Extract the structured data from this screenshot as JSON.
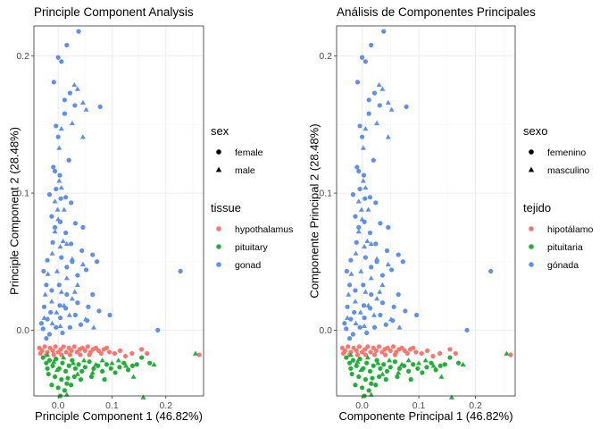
{
  "colors": {
    "hypothalamus": "#F8766D",
    "pituitary": "#1FB136",
    "gonad": "#5B8FF0",
    "legend_key": "#000000"
  },
  "chart_data": [
    {
      "type": "scatter",
      "title": "Principle Component Analysis",
      "xlabel": "Principle Component 1 (46.82%)",
      "ylabel": "Principle Component 2 (28.48%)",
      "xlim": [
        -0.045,
        0.27
      ],
      "ylim": [
        -0.048,
        0.222
      ],
      "x_ticks": [
        {
          "value": 0.0,
          "label": "0.0"
        },
        {
          "value": 0.1,
          "label": "0.1"
        },
        {
          "value": 0.2,
          "label": "0.2"
        }
      ],
      "y_ticks": [
        {
          "value": 0.0,
          "label": "0.0"
        },
        {
          "value": 0.1,
          "label": "0.1"
        },
        {
          "value": 0.2,
          "label": "0.2"
        }
      ],
      "grid": true,
      "legend_position": "right",
      "legend": {
        "shape_title": "sex",
        "shape_items": [
          {
            "key": "female",
            "label": "female",
            "shape": "circle"
          },
          {
            "key": "male",
            "label": "male",
            "shape": "triangle"
          }
        ],
        "color_title": "tissue",
        "color_items": [
          {
            "key": "hypothalamus",
            "label": "hypothalamus"
          },
          {
            "key": "pituitary",
            "label": "pituitary"
          },
          {
            "key": "gonad",
            "label": "gonad"
          }
        ]
      }
    },
    {
      "type": "scatter",
      "title": "Análisis de Componentes Principales",
      "xlabel": "Componente Principal 1 (46.82%)",
      "ylabel": "Componente Principal 2 (28.48%)",
      "xlim": [
        -0.045,
        0.27
      ],
      "ylim": [
        -0.048,
        0.222
      ],
      "x_ticks": [
        {
          "value": 0.0,
          "label": "0.0"
        },
        {
          "value": 0.1,
          "label": "0.1"
        },
        {
          "value": 0.2,
          "label": "0.2"
        }
      ],
      "y_ticks": [
        {
          "value": 0.0,
          "label": "0.0"
        },
        {
          "value": 0.1,
          "label": "0.1"
        },
        {
          "value": 0.2,
          "label": "0.2"
        }
      ],
      "grid": true,
      "legend_position": "right",
      "legend": {
        "shape_title": "sexo",
        "shape_items": [
          {
            "key": "female",
            "label": "femenino",
            "shape": "circle"
          },
          {
            "key": "male",
            "label": "masculino",
            "shape": "triangle"
          }
        ],
        "color_title": "tejido",
        "color_items": [
          {
            "key": "hypothalamus",
            "label": "hipotálamo"
          },
          {
            "key": "pituitary",
            "label": "pituitaria"
          },
          {
            "key": "gonad",
            "label": "gónada"
          }
        ]
      }
    }
  ],
  "points": {
    "gonad_female": [
      [
        0.016,
        0.208
      ],
      [
        0.038,
        0.218
      ],
      [
        0.0,
        0.199
      ],
      [
        0.006,
        0.196
      ],
      [
        -0.008,
        0.181
      ],
      [
        0.012,
        0.168
      ],
      [
        0.022,
        0.173
      ],
      [
        0.031,
        0.164
      ],
      [
        0.012,
        0.158
      ],
      [
        0.078,
        0.163
      ],
      [
        -0.004,
        0.149
      ],
      [
        0.0,
        0.141
      ],
      [
        -0.009,
        0.119
      ],
      [
        -0.006,
        0.116
      ],
      [
        0.003,
        0.113
      ],
      [
        0.02,
        0.124
      ],
      [
        -0.016,
        0.099
      ],
      [
        -0.004,
        0.103
      ],
      [
        0.005,
        0.096
      ],
      [
        0.014,
        0.097
      ],
      [
        0.024,
        0.093
      ],
      [
        0.032,
        0.078
      ],
      [
        0.046,
        0.075
      ],
      [
        -0.012,
        0.083
      ],
      [
        -0.006,
        0.075
      ],
      [
        0.004,
        0.079
      ],
      [
        0.014,
        0.071
      ],
      [
        0.024,
        0.063
      ],
      [
        0.044,
        0.058
      ],
      [
        0.064,
        0.055
      ],
      [
        0.072,
        0.05
      ],
      [
        0.052,
        0.044
      ],
      [
        0.036,
        0.04
      ],
      [
        0.016,
        0.046
      ],
      [
        0.006,
        0.053
      ],
      [
        -0.02,
        0.051
      ],
      [
        -0.027,
        0.043
      ],
      [
        -0.022,
        0.033
      ],
      [
        -0.012,
        0.029
      ],
      [
        0.002,
        0.033
      ],
      [
        0.016,
        0.026
      ],
      [
        0.036,
        0.02
      ],
      [
        0.056,
        0.017
      ],
      [
        0.076,
        0.014
      ],
      [
        0.096,
        0.011
      ],
      [
        0.064,
        0.026
      ],
      [
        0.032,
        0.011
      ],
      [
        0.014,
        0.016
      ],
      [
        0.004,
        0.009
      ],
      [
        -0.014,
        0.013
      ],
      [
        -0.026,
        0.017
      ],
      [
        -0.031,
        0.005
      ],
      [
        -0.028,
        0.001
      ],
      [
        -0.016,
        -0.003
      ],
      [
        -0.004,
        0.002
      ],
      [
        0.008,
        -0.002
      ],
      [
        -0.02,
        0.008
      ],
      [
        0.042,
        0.004
      ],
      [
        0.227,
        0.043
      ],
      [
        0.185,
        0.0
      ],
      [
        0.022,
        0.002
      ],
      [
        0.054,
        0.007
      ],
      [
        0.003,
        0.018
      ],
      [
        -0.022,
        -0.006
      ],
      [
        0.026,
        0.05
      ],
      [
        -0.01,
        0.064
      ]
    ],
    "gonad_male": [
      [
        0.006,
        0.147
      ],
      [
        0.03,
        0.179
      ],
      [
        0.036,
        0.176
      ],
      [
        0.046,
        0.166
      ],
      [
        0.052,
        0.161
      ],
      [
        0.026,
        0.151
      ],
      [
        0.046,
        0.141
      ],
      [
        0.002,
        0.133
      ],
      [
        0.002,
        0.109
      ],
      [
        0.006,
        0.104
      ],
      [
        -0.006,
        0.094
      ],
      [
        0.011,
        0.088
      ],
      [
        0.0,
        0.081
      ],
      [
        -0.006,
        0.072
      ],
      [
        0.016,
        0.063
      ],
      [
        0.004,
        0.061
      ],
      [
        -0.011,
        0.056
      ],
      [
        0.026,
        0.052
      ],
      [
        0.046,
        0.048
      ],
      [
        -0.002,
        0.043
      ],
      [
        -0.019,
        0.041
      ],
      [
        0.016,
        0.038
      ],
      [
        0.036,
        0.033
      ],
      [
        0.006,
        0.028
      ],
      [
        -0.024,
        0.026
      ],
      [
        0.026,
        0.023
      ],
      [
        -0.012,
        0.021
      ],
      [
        0.011,
        0.018
      ],
      [
        -0.003,
        0.013
      ],
      [
        0.021,
        0.011
      ],
      [
        0.051,
        0.008
      ],
      [
        -0.026,
        0.009
      ],
      [
        -0.011,
        0.005
      ],
      [
        0.004,
        0.003
      ],
      [
        0.066,
        0.002
      ],
      [
        0.031,
        0.028
      ],
      [
        0.009,
        0.065
      ],
      [
        -0.001,
        0.088
      ]
    ],
    "hypothalamus": [
      [
        -0.035,
        -0.013
      ],
      [
        -0.03,
        -0.015
      ],
      [
        -0.025,
        -0.012
      ],
      [
        -0.02,
        -0.016
      ],
      [
        -0.015,
        -0.013
      ],
      [
        -0.01,
        -0.015
      ],
      [
        -0.005,
        -0.012
      ],
      [
        0.0,
        -0.016
      ],
      [
        0.005,
        -0.014
      ],
      [
        0.01,
        -0.012
      ],
      [
        0.015,
        -0.016
      ],
      [
        0.02,
        -0.013
      ],
      [
        0.025,
        -0.015
      ],
      [
        0.03,
        -0.012
      ],
      [
        0.035,
        -0.016
      ],
      [
        0.04,
        -0.014
      ],
      [
        0.045,
        -0.013
      ],
      [
        0.05,
        -0.015
      ],
      [
        0.055,
        -0.012
      ],
      [
        0.06,
        -0.016
      ],
      [
        0.065,
        -0.014
      ],
      [
        0.07,
        -0.013
      ],
      [
        0.075,
        -0.015
      ],
      [
        0.08,
        -0.017
      ],
      [
        0.085,
        -0.014
      ],
      [
        0.09,
        -0.013
      ],
      [
        0.095,
        -0.016
      ],
      [
        0.105,
        -0.017
      ],
      [
        0.115,
        -0.015
      ],
      [
        0.125,
        -0.019
      ],
      [
        0.137,
        -0.017
      ],
      [
        0.155,
        -0.014
      ],
      [
        0.165,
        -0.017
      ],
      [
        -0.033,
        -0.017
      ],
      [
        -0.022,
        -0.018
      ],
      [
        -0.008,
        -0.018
      ],
      [
        0.006,
        -0.018
      ],
      [
        0.022,
        -0.018
      ],
      [
        0.041,
        -0.018
      ],
      [
        0.058,
        -0.018
      ],
      [
        0.262,
        -0.018
      ]
    ],
    "pituitary_female": [
      [
        -0.028,
        -0.02
      ],
      [
        -0.022,
        -0.024
      ],
      [
        -0.016,
        -0.022
      ],
      [
        -0.01,
        -0.026
      ],
      [
        -0.004,
        -0.021
      ],
      [
        0.002,
        -0.028
      ],
      [
        0.008,
        -0.024
      ],
      [
        0.014,
        -0.03
      ],
      [
        0.02,
        -0.026
      ],
      [
        0.026,
        -0.022
      ],
      [
        0.032,
        -0.028
      ],
      [
        0.038,
        -0.025
      ],
      [
        0.044,
        -0.03
      ],
      [
        0.05,
        -0.027
      ],
      [
        0.058,
        -0.023
      ],
      [
        0.066,
        -0.028
      ],
      [
        0.074,
        -0.026
      ],
      [
        0.082,
        -0.03
      ],
      [
        0.09,
        -0.025
      ],
      [
        0.098,
        -0.028
      ],
      [
        0.106,
        -0.031
      ],
      [
        0.114,
        -0.027
      ],
      [
        0.122,
        -0.024
      ],
      [
        0.13,
        -0.029
      ],
      [
        0.138,
        -0.026
      ],
      [
        0.146,
        -0.025
      ],
      [
        0.155,
        -0.02
      ],
      [
        0.17,
        -0.024
      ],
      [
        -0.018,
        -0.032
      ],
      [
        -0.006,
        -0.034
      ],
      [
        0.006,
        -0.036
      ],
      [
        0.018,
        -0.035
      ],
      [
        -0.012,
        -0.04
      ],
      [
        0.0,
        -0.042
      ],
      [
        0.012,
        -0.044
      ],
      [
        0.004,
        -0.048
      ],
      [
        -0.02,
        -0.028
      ],
      [
        0.03,
        -0.034
      ],
      [
        0.042,
        -0.036
      ],
      [
        0.024,
        -0.04
      ],
      [
        0.062,
        -0.034
      ],
      [
        0.086,
        -0.036
      ],
      [
        0.016,
        -0.039
      ]
    ],
    "pituitary_male": [
      [
        -0.02,
        -0.018
      ],
      [
        -0.008,
        -0.023
      ],
      [
        0.01,
        -0.02
      ],
      [
        0.028,
        -0.024
      ],
      [
        0.048,
        -0.022
      ],
      [
        0.064,
        -0.031
      ],
      [
        0.082,
        -0.022
      ],
      [
        0.1,
        -0.024
      ],
      [
        0.112,
        -0.022
      ],
      [
        0.126,
        -0.026
      ],
      [
        0.14,
        -0.034
      ],
      [
        0.178,
        -0.025
      ],
      [
        0.255,
        -0.017
      ],
      [
        0.158,
        -0.049
      ],
      [
        0.016,
        -0.047
      ],
      [
        0.036,
        -0.032
      ],
      [
        0.07,
        -0.025
      ],
      [
        -0.002,
        -0.029
      ]
    ]
  }
}
